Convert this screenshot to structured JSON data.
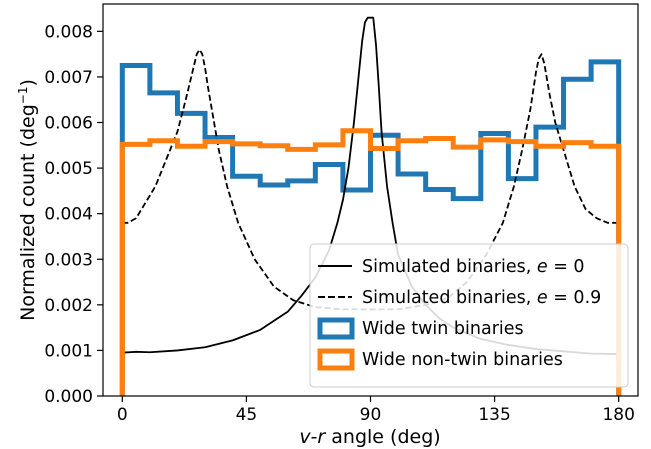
{
  "chart_data": {
    "type": "line",
    "title": "",
    "xlabel": {
      "var": "v-r",
      "rest": " angle (deg)"
    },
    "ylabel": {
      "main": "Normalized count (deg",
      "sup": "−1",
      "close": ")"
    },
    "xlim": [
      -7,
      187
    ],
    "ylim": [
      0,
      0.0086
    ],
    "xticks": [
      0,
      45,
      90,
      135,
      180
    ],
    "xtick_labels": [
      "0",
      "45",
      "90",
      "135",
      "180"
    ],
    "yticks": [
      0,
      0.001,
      0.002,
      0.003,
      0.004,
      0.005,
      0.006,
      0.007,
      0.008
    ],
    "ytick_labels": [
      "0.000",
      "0.001",
      "0.002",
      "0.003",
      "0.004",
      "0.005",
      "0.006",
      "0.007",
      "0.008"
    ],
    "legend_position": "lower-right",
    "series": [
      {
        "name": "Simulated binaries, e = 0",
        "legend_prefix": "Simulated binaries, ",
        "legend_var": "e",
        "legend_value": " = 0",
        "kind": "line",
        "style": "solid",
        "color": "#000000",
        "x": [
          0,
          5,
          10,
          20,
          30,
          40,
          50,
          60,
          65,
          70,
          75,
          78,
          80,
          82,
          84,
          86,
          87,
          88,
          89,
          90,
          91,
          92,
          93,
          94,
          96,
          98,
          100,
          105,
          110,
          115,
          120,
          130,
          140,
          150,
          160,
          170,
          180
        ],
        "y": [
          0.00095,
          0.00097,
          0.00096,
          0.001,
          0.00107,
          0.00122,
          0.00145,
          0.00185,
          0.0022,
          0.0026,
          0.0032,
          0.0038,
          0.0043,
          0.005,
          0.006,
          0.0072,
          0.0078,
          0.0082,
          0.0083,
          0.0083,
          0.0083,
          0.0077,
          0.0068,
          0.0058,
          0.0046,
          0.0038,
          0.0031,
          0.0024,
          0.002,
          0.0017,
          0.0015,
          0.00125,
          0.00112,
          0.00103,
          0.00098,
          0.00093,
          0.00092
        ]
      },
      {
        "name": "Simulated binaries, e = 0.9",
        "legend_prefix": "Simulated binaries, ",
        "legend_var": "e",
        "legend_value": " = 0.9",
        "kind": "line",
        "style": "dashed",
        "color": "#000000",
        "x": [
          0,
          2,
          5,
          8,
          12,
          16,
          20,
          23,
          25,
          27,
          28,
          29,
          30,
          31,
          33,
          35,
          38,
          42,
          48,
          55,
          62,
          70,
          80,
          90,
          100,
          110,
          118,
          125,
          132,
          138,
          142,
          145,
          148,
          150,
          151,
          152,
          153,
          155,
          157,
          160,
          164,
          168,
          172,
          176,
          180
        ],
        "y": [
          0.0038,
          0.0038,
          0.0039,
          0.0042,
          0.0046,
          0.0052,
          0.0058,
          0.0065,
          0.007,
          0.0075,
          0.0076,
          0.0075,
          0.0072,
          0.0068,
          0.0061,
          0.0054,
          0.0046,
          0.0038,
          0.003,
          0.0024,
          0.0021,
          0.00195,
          0.0019,
          0.0019,
          0.0019,
          0.002,
          0.00215,
          0.0025,
          0.0031,
          0.0038,
          0.0046,
          0.0054,
          0.0063,
          0.0071,
          0.0074,
          0.0075,
          0.0073,
          0.0066,
          0.006,
          0.0054,
          0.0046,
          0.0041,
          0.0039,
          0.0038,
          0.0038
        ]
      },
      {
        "name": "Wide twin binaries",
        "kind": "step",
        "color": "#1f77b4",
        "bin_edges": [
          0,
          10,
          20,
          30,
          40,
          50,
          60,
          70,
          80,
          90,
          100,
          110,
          120,
          130,
          140,
          150,
          160,
          170,
          180
        ],
        "values": [
          0.00725,
          0.00665,
          0.0062,
          0.00567,
          0.00482,
          0.00463,
          0.00472,
          0.00508,
          0.00452,
          0.00572,
          0.00487,
          0.00453,
          0.00433,
          0.00576,
          0.00477,
          0.0059,
          0.00695,
          0.00733
        ]
      },
      {
        "name": "Wide non-twin binaries",
        "kind": "step",
        "color": "#ff7f0e",
        "bin_edges": [
          0,
          10,
          20,
          30,
          40,
          50,
          60,
          70,
          80,
          90,
          100,
          110,
          120,
          130,
          140,
          150,
          160,
          170,
          180
        ],
        "values": [
          0.00552,
          0.0056,
          0.00548,
          0.00558,
          0.00553,
          0.00549,
          0.00541,
          0.00551,
          0.00582,
          0.00543,
          0.0056,
          0.00565,
          0.00546,
          0.00562,
          0.00558,
          0.00548,
          0.00556,
          0.00548
        ]
      }
    ]
  }
}
